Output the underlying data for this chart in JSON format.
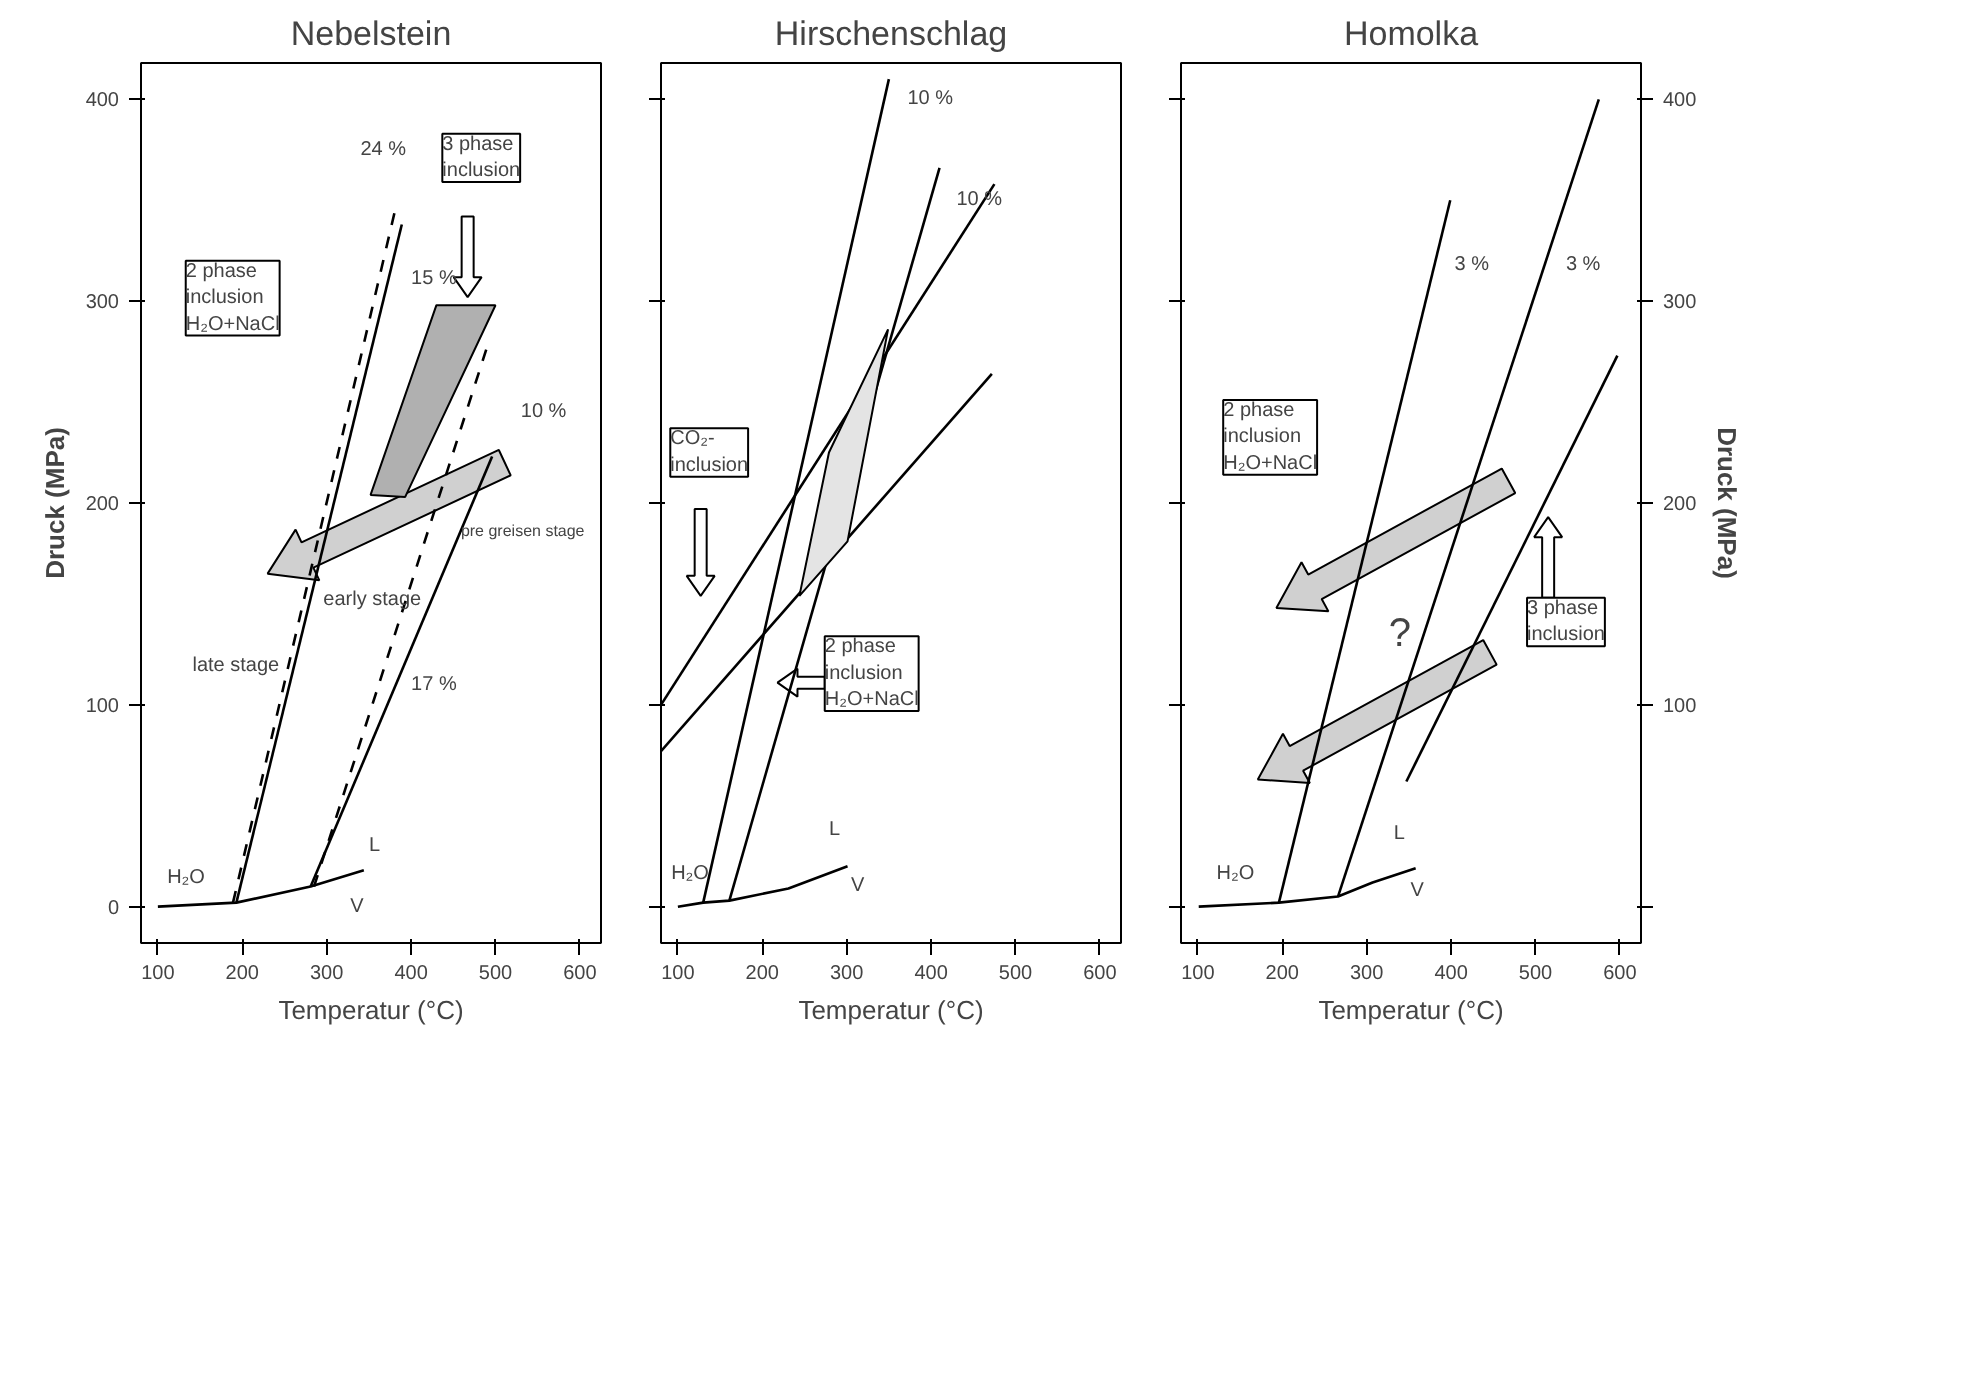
{
  "chart_data": [
    {
      "type": "line",
      "title": "Nebelstein",
      "xlabel": "Temperatur (°C)",
      "ylabel": "Druck (MPa)",
      "xlim": [
        80,
        625
      ],
      "ylim": [
        -18,
        418
      ],
      "xticks": [
        100,
        200,
        300,
        400,
        500,
        600
      ],
      "yticks": [
        0,
        100,
        200,
        300,
        400
      ],
      "series": [
        {
          "color": "#000000",
          "x": [
            100,
            193,
            281,
            344
          ],
          "values": [
            0,
            2,
            10,
            18
          ]
        },
        {
          "color": "#000000",
          "x": [
            193,
            389
          ],
          "values": [
            2,
            338
          ]
        },
        {
          "color": "#000000",
          "line_style": "dashed",
          "x": [
            189,
            381
          ],
          "values": [
            2,
            345
          ]
        },
        {
          "color": "#000000",
          "x": [
            281,
            496
          ],
          "values": [
            10,
            223
          ]
        },
        {
          "color": "#000000",
          "line_style": "dashed",
          "x": [
            285,
            489
          ],
          "values": [
            10,
            276
          ]
        },
        {
          "type": "area",
          "color": "#b0b0b0",
          "x": [
            430,
            500,
            393,
            352
          ],
          "values": [
            298,
            298,
            203,
            204
          ]
        }
      ],
      "annotations": [
        "3 phase\ninclusion",
        "2 phase\ninclusion\nH₂O+NaCl",
        "24 %",
        "15 %",
        "10 %",
        "17 %",
        "pre greisen stage",
        "early stage",
        "late stage",
        "L",
        "V",
        "H₂O"
      ]
    },
    {
      "type": "line",
      "title": "Hirschenschlag",
      "xlabel": "Temperatur (°C)",
      "xlim": [
        80,
        625
      ],
      "ylim": [
        -18,
        418
      ],
      "xticks": [
        100,
        200,
        300,
        400,
        500,
        600
      ],
      "yticks": [
        0,
        100,
        200,
        300,
        400
      ],
      "tick_labels": "x",
      "series": [
        {
          "color": "#000000",
          "x": [
            100,
            130,
            161,
            231,
            301
          ],
          "values": [
            0,
            2,
            3,
            9,
            20
          ]
        },
        {
          "color": "#000000",
          "x": [
            130,
            350
          ],
          "values": [
            2,
            410
          ]
        },
        {
          "color": "#000000",
          "x": [
            161,
            410
          ],
          "values": [
            3,
            366
          ]
        },
        {
          "color": "#000000",
          "x": [
            80,
            475
          ],
          "values": [
            100,
            358
          ]
        },
        {
          "color": "#000000",
          "x": [
            80,
            472
          ],
          "values": [
            77,
            264
          ]
        },
        {
          "type": "area",
          "color": "#e4e4e4",
          "x": [
            244,
            279,
            349,
            301
          ],
          "values": [
            154,
            225,
            286,
            181
          ]
        }
      ],
      "annotations": [
        "10 %",
        "10 %",
        "CO₂-\ninclusion",
        "2 phase\ninclusion\nH₂O+NaCl",
        "L",
        "V",
        "H₂O"
      ]
    },
    {
      "type": "line",
      "title": "Homolka",
      "xlabel": "Temperatur (°C)",
      "ylabel": "Druck (MPa)",
      "xlim": [
        80,
        625
      ],
      "ylim": [
        -18,
        418
      ],
      "xticks": [
        100,
        200,
        300,
        400,
        500,
        600
      ],
      "yticks": [
        {
          "value": 0,
          "label": null
        },
        100,
        200,
        300,
        400
      ],
      "series": [
        {
          "color": "#000000",
          "x": [
            101,
            196,
            266,
            307,
            358
          ],
          "values": [
            0,
            2,
            5,
            12,
            19
          ]
        },
        {
          "color": "#000000",
          "x": [
            196,
            399
          ],
          "values": [
            2,
            350
          ]
        },
        {
          "color": "#000000",
          "x": [
            266,
            575
          ],
          "values": [
            5,
            400
          ]
        },
        {
          "color": "#000000",
          "x": [
            347,
            597
          ],
          "values": [
            62,
            273
          ]
        }
      ],
      "annotations": [
        "3 %",
        "3 %",
        "?",
        "2 phase\ninclusion\nH₂O+NaCl",
        "3 phase\ninclusion",
        "L",
        "V",
        "H₂O"
      ]
    }
  ]
}
